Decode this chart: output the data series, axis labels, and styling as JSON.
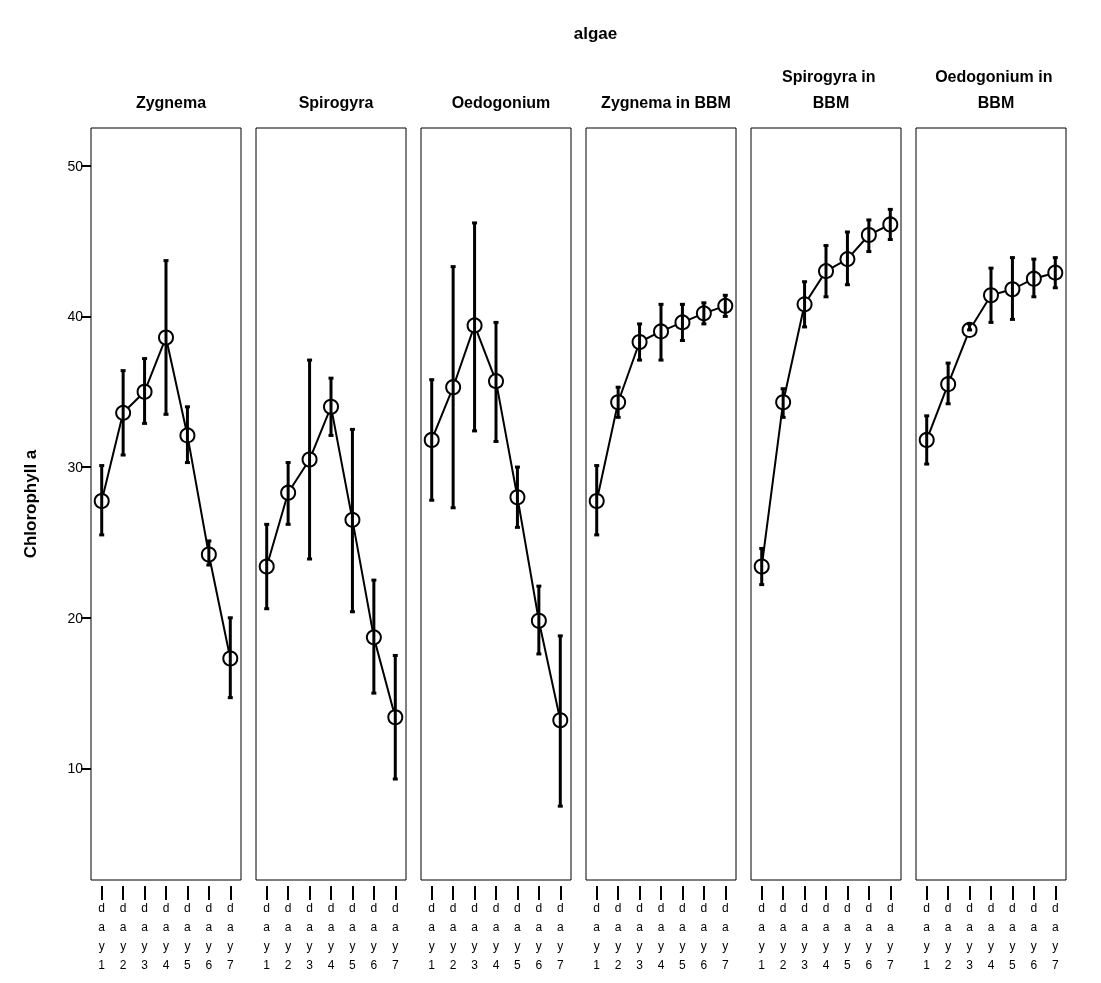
{
  "chart_data": [
    {
      "type": "line",
      "title": "Zygnema",
      "ylabel": "Chlorophyll a",
      "annotations": [
        "algae"
      ],
      "categories": [
        "day 1",
        "day 2",
        "day 3",
        "day 4",
        "day 5",
        "day 6",
        "day 7"
      ],
      "marker": "circle",
      "line_style": "solid",
      "ylim": [
        2.6,
        52.5
      ],
      "yticks": [
        10,
        20,
        30,
        40,
        50
      ],
      "series": [
        {
          "color": "#000000",
          "values": [
            27.75,
            33.6,
            35.0,
            38.6,
            32.1,
            24.2,
            17.3
          ],
          "errors": [
            [
              25.5,
              30.1
            ],
            [
              30.8,
              36.4
            ],
            [
              32.9,
              37.2
            ],
            [
              33.5,
              43.7
            ],
            [
              30.3,
              34.0
            ],
            [
              23.5,
              25.1
            ],
            [
              14.7,
              20.0
            ]
          ]
        }
      ]
    },
    {
      "type": "line",
      "title": "Spirogyra",
      "categories": [
        "day 1",
        "day 2",
        "day 3",
        "day 4",
        "day 5",
        "day 6",
        "day 7"
      ],
      "marker": "circle",
      "line_style": "solid",
      "ylim": [
        2.6,
        52.5
      ],
      "yticks": [
        10,
        20,
        30,
        40,
        50
      ],
      "tick_labels": "x",
      "series": [
        {
          "color": "#000000",
          "values": [
            23.4,
            28.3,
            30.5,
            34.0,
            26.5,
            18.7,
            13.4
          ],
          "errors": [
            [
              20.6,
              26.2
            ],
            [
              26.2,
              30.3
            ],
            [
              23.9,
              37.1
            ],
            [
              32.1,
              35.9
            ],
            [
              20.4,
              32.5
            ],
            [
              15.0,
              22.5
            ],
            [
              9.3,
              17.5
            ]
          ]
        }
      ]
    },
    {
      "type": "line",
      "title": "Oedogonium",
      "categories": [
        "day 1",
        "day 2",
        "day 3",
        "day 4",
        "day 5",
        "day 6",
        "day 7"
      ],
      "marker": "circle",
      "line_style": "solid",
      "ylim": [
        2.6,
        52.5
      ],
      "yticks": [
        10,
        20,
        30,
        40,
        50
      ],
      "tick_labels": "x",
      "series": [
        {
          "color": "#000000",
          "values": [
            31.8,
            35.3,
            39.4,
            35.7,
            28.0,
            19.8,
            13.2
          ],
          "errors": [
            [
              27.8,
              35.8
            ],
            [
              27.3,
              43.3
            ],
            [
              32.4,
              46.2
            ],
            [
              31.7,
              39.6
            ],
            [
              26.0,
              30.0
            ],
            [
              17.6,
              22.1
            ],
            [
              7.5,
              18.8
            ]
          ]
        }
      ]
    },
    {
      "type": "line",
      "title": "Zygnema in BBM",
      "categories": [
        "day 1",
        "day 2",
        "day 3",
        "day 4",
        "day 5",
        "day 6",
        "day 7"
      ],
      "marker": "circle",
      "line_style": "solid",
      "ylim": [
        2.6,
        52.5
      ],
      "yticks": [
        10,
        20,
        30,
        40,
        50
      ],
      "tick_labels": "x",
      "series": [
        {
          "color": "#000000",
          "values": [
            27.75,
            34.3,
            38.3,
            39.0,
            39.6,
            40.2,
            40.7
          ],
          "errors": [
            [
              25.5,
              30.1
            ],
            [
              33.3,
              35.3
            ],
            [
              37.1,
              39.5
            ],
            [
              37.1,
              40.8
            ],
            [
              38.4,
              40.8
            ],
            [
              39.5,
              40.9
            ],
            [
              40.0,
              41.4
            ]
          ]
        }
      ]
    },
    {
      "type": "line",
      "title": "Spirogyra in BBM",
      "categories": [
        "day 1",
        "day 2",
        "day 3",
        "day 4",
        "day 5",
        "day 6",
        "day 7"
      ],
      "marker": "circle",
      "line_style": "solid",
      "ylim": [
        2.6,
        52.5
      ],
      "yticks": [
        10,
        20,
        30,
        40,
        50
      ],
      "tick_labels": "x",
      "series": [
        {
          "color": "#000000",
          "values": [
            23.4,
            34.3,
            40.8,
            43.0,
            43.8,
            45.4,
            46.1
          ],
          "errors": [
            [
              22.2,
              24.6
            ],
            [
              33.3,
              35.2
            ],
            [
              39.3,
              42.3
            ],
            [
              41.3,
              44.7
            ],
            [
              42.1,
              45.6
            ],
            [
              44.3,
              46.4
            ],
            [
              45.1,
              47.1
            ]
          ]
        }
      ]
    },
    {
      "type": "line",
      "title": "Oedogonium in BBM",
      "categories": [
        "day 1",
        "day 2",
        "day 3",
        "day 4",
        "day 5",
        "day 6",
        "day 7"
      ],
      "marker": "circle",
      "line_style": "solid",
      "ylim": [
        2.6,
        52.5
      ],
      "yticks": [
        10,
        20,
        30,
        40,
        50
      ],
      "tick_labels": "x",
      "series": [
        {
          "color": "#000000",
          "values": [
            31.8,
            35.5,
            39.1,
            41.4,
            41.8,
            42.5,
            42.9
          ],
          "errors": [
            [
              30.2,
              33.4
            ],
            [
              34.2,
              36.9
            ],
            [
              39.1,
              39.5
            ],
            [
              39.6,
              43.2
            ],
            [
              39.8,
              43.9
            ],
            [
              41.3,
              43.8
            ],
            [
              41.9,
              43.9
            ]
          ]
        }
      ]
    }
  ]
}
